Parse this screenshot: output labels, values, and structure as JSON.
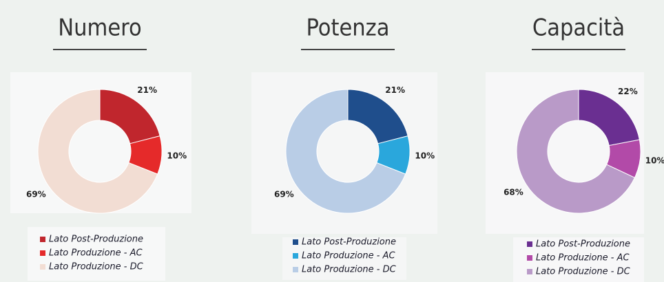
{
  "chart_data": [
    {
      "type": "pie",
      "title": "Numero",
      "categories": [
        "Lato Post-Produzione",
        "Lato Produzione - AC",
        "Lato Produzione - DC"
      ],
      "values": [
        21,
        10,
        69
      ],
      "value_labels": [
        "21%",
        "10%",
        "69%"
      ],
      "colors": [
        "#c0262d",
        "#e52a2a",
        "#f2ddd3"
      ]
    },
    {
      "type": "pie",
      "title": "Potenza",
      "categories": [
        "Lato Post-Produzione",
        "Lato Produzione - AC",
        "Lato Produzione - DC"
      ],
      "values": [
        21,
        10,
        69
      ],
      "value_labels": [
        "21%",
        "10%",
        "69%"
      ],
      "colors": [
        "#1f4e8c",
        "#2aa7dc",
        "#b9cde6"
      ]
    },
    {
      "type": "pie",
      "title": "Capacità",
      "categories": [
        "Lato Post-Produzione",
        "Lato Produzione - AC",
        "Lato Produzione - DC"
      ],
      "values": [
        22,
        10,
        68
      ],
      "value_labels": [
        "22%",
        "10%",
        "68%"
      ],
      "colors": [
        "#6a2f91",
        "#b24aa8",
        "#b99ac8"
      ]
    }
  ]
}
